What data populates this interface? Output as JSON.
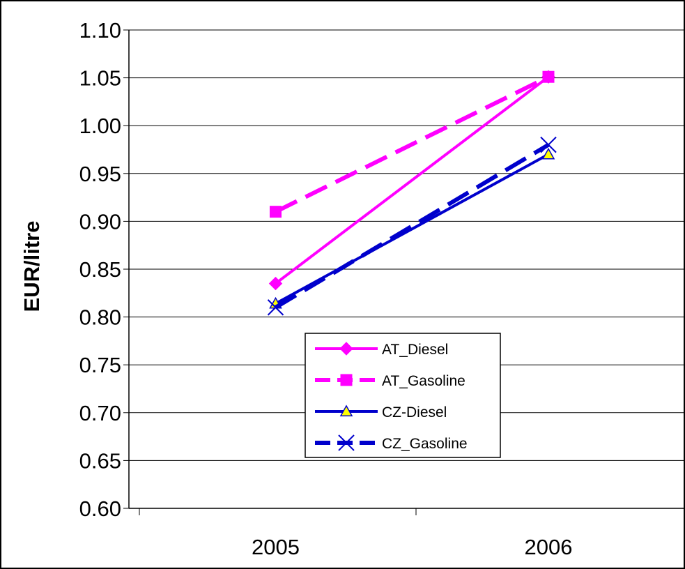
{
  "chart_data": {
    "type": "line",
    "title": "",
    "xlabel": "",
    "ylabel": "EUR/litre",
    "ylim": [
      0.6,
      1.1
    ],
    "y_ticks": [
      "0.60",
      "0.65",
      "0.70",
      "0.75",
      "0.80",
      "0.85",
      "0.90",
      "0.95",
      "1.00",
      "1.05",
      "1.10"
    ],
    "categories": [
      "2005",
      "2006"
    ],
    "grid": "horizontal",
    "legend_position": "center",
    "series": [
      {
        "name": "AT_Diesel",
        "values": [
          0.835,
          1.051
        ],
        "color": "#FF00FF",
        "dash": "solid",
        "marker": "diamond"
      },
      {
        "name": "AT_Gasoline",
        "values": [
          0.91,
          1.051
        ],
        "color": "#FF00FF",
        "dash": "dashed",
        "marker": "square"
      },
      {
        "name": "CZ-Diesel",
        "values": [
          0.814,
          0.97
        ],
        "color": "#0000CC",
        "dash": "solid",
        "marker": "triangle"
      },
      {
        "name": "CZ_Gasoline",
        "values": [
          0.81,
          0.98
        ],
        "color": "#0000CC",
        "dash": "dashed",
        "marker": "x"
      }
    ]
  }
}
